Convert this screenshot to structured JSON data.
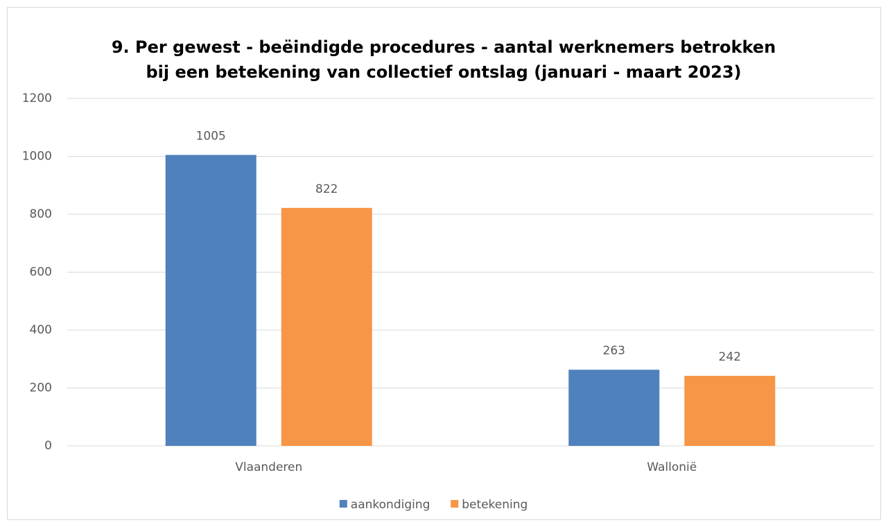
{
  "chart_data": {
    "type": "bar",
    "title": "9. Per gewest - beëindigde procedures - aantal werknemers betrokken bij een betekening van collectief ontslag (januari - maart 2023)",
    "categories": [
      "Vlaanderen",
      "Wallonië"
    ],
    "series": [
      {
        "name": "aankondiging",
        "color": "#4f81bd",
        "values": [
          1005,
          263
        ]
      },
      {
        "name": "betekening",
        "color": "#f79646",
        "values": [
          822,
          242
        ]
      }
    ],
    "ylim": [
      0,
      1200
    ],
    "yticks": [
      0,
      200,
      400,
      600,
      800,
      1000,
      1200
    ],
    "grid": true,
    "legend": "bottom",
    "data_labels": true
  }
}
